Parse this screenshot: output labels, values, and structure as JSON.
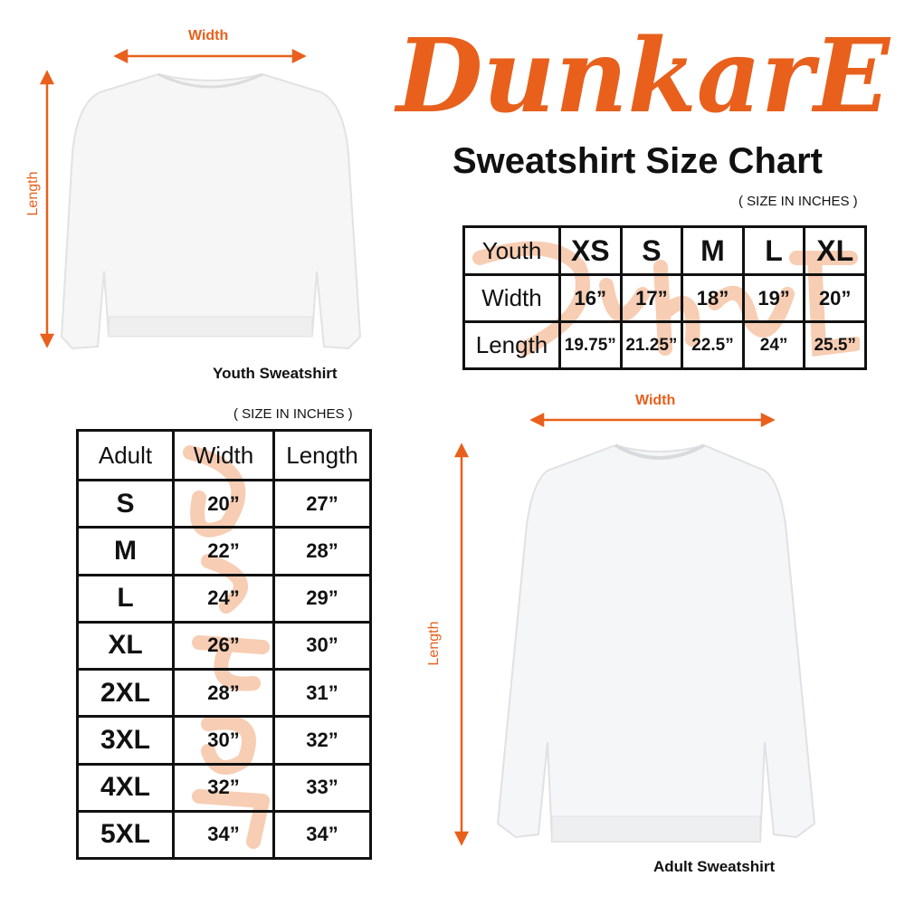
{
  "brand": {
    "logo_text": "DunkarE",
    "color": "#e8601c"
  },
  "title": "Sweatshirt Size Chart",
  "youth": {
    "caption": "Youth Sweatshirt",
    "width_label": "Width",
    "length_label": "Length",
    "units": "( SIZE IN INCHES )",
    "table": {
      "header": [
        "Youth",
        "XS",
        "S",
        "M",
        "L",
        "XL"
      ],
      "rows": [
        [
          "Width",
          "16”",
          "17”",
          "18”",
          "19”",
          "20”"
        ],
        [
          "Length",
          "19.75”",
          "21.25”",
          "22.5”",
          "24”",
          "25.5”"
        ]
      ]
    }
  },
  "adult": {
    "caption": "Adult Sweatshirt",
    "width_label": "Width",
    "length_label": "Length",
    "units": "( SIZE IN INCHES )",
    "table": {
      "header": [
        "Adult",
        "Width",
        "Length"
      ],
      "rows": [
        [
          "S",
          "20”",
          "27”"
        ],
        [
          "M",
          "22”",
          "28”"
        ],
        [
          "L",
          "24”",
          "29”"
        ],
        [
          "XL",
          "26”",
          "30”"
        ],
        [
          "2XL",
          "28”",
          "31”"
        ],
        [
          "3XL",
          "30”",
          "32”"
        ],
        [
          "4XL",
          "32”",
          "33”"
        ],
        [
          "5XL",
          "34”",
          "34”"
        ]
      ]
    }
  }
}
